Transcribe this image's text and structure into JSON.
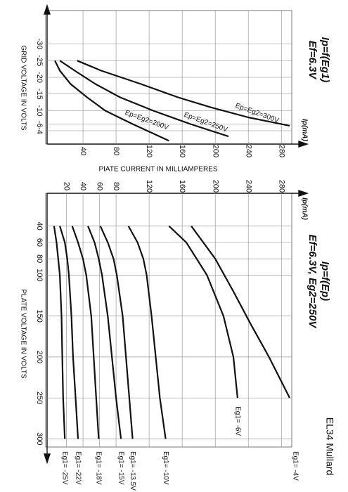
{
  "title": "EL34 Mullard",
  "chart_data": [
    {
      "type": "line",
      "title": "Ip=f(Eg1)",
      "subtitle": "Ef=6.3V",
      "unit_label": "Ip(mA)",
      "xlabel": "GRID VOLTAGE IN VOLTS",
      "ylabel": "PIATE CURRENT IN MILLIAMPERES",
      "xlim": [
        -40,
        0
      ],
      "xticks": [
        -30,
        -25,
        -20,
        -15,
        -10,
        -6,
        -4
      ],
      "ylim": [
        0,
        290
      ],
      "yticks": [
        40,
        80,
        120,
        160,
        200,
        240,
        280
      ],
      "grid": true,
      "series": [
        {
          "name": "Ep=Eg2=300V",
          "color": "#111111",
          "x": [
            -25,
            -22,
            -18,
            -14,
            -11,
            -8,
            -5.5
          ],
          "values": [
            33,
            62,
            110,
            155,
            195,
            240,
            290
          ]
        },
        {
          "name": "Ep=Eg2=250V",
          "color": "#111111",
          "x": [
            -25,
            -22,
            -18,
            -14,
            -10,
            -6,
            -2.3
          ],
          "values": [
            12,
            30,
            55,
            85,
            125,
            170,
            216
          ]
        },
        {
          "name": "Ep=Eg2=200V",
          "color": "#111111",
          "x": [
            -25,
            -22,
            -18,
            -14,
            -10,
            -6,
            -1
          ],
          "values": [
            6,
            12,
            25,
            45,
            67,
            100,
            144
          ]
        }
      ]
    },
    {
      "type": "line",
      "title": "Ip=f(Ep)",
      "subtitle": "Ef=6.3V, Eg2=250V",
      "unit_label": "Ip(mA)",
      "xlabel": "PLATE VOLTAGE IN VOLTS",
      "xlim": [
        0,
        310
      ],
      "xticks": [
        40,
        60,
        80,
        100,
        150,
        200,
        250,
        300
      ],
      "ylim": [
        0,
        290
      ],
      "yticks": [
        20,
        40,
        60,
        80,
        120,
        160,
        200,
        240,
        280
      ],
      "grid": true,
      "series": [
        {
          "name": "Eg1= -4V",
          "color": "#111111",
          "x": [
            40,
            80,
            120,
            160,
            200,
            250
          ],
          "values": [
            171,
            200,
            222,
            243,
            265,
            290
          ]
        },
        {
          "name": "Eg1= -6V",
          "color": "#111111",
          "x": [
            40,
            60,
            100,
            150,
            200,
            250
          ],
          "values": [
            144,
            165,
            190,
            210,
            222,
            227
          ]
        },
        {
          "name": "Eg1= -10V",
          "color": "#111111",
          "x": [
            40,
            60,
            80,
            100,
            150,
            200,
            250,
            300
          ],
          "values": [
            95,
            106,
            113,
            117,
            123,
            128,
            133,
            140
          ]
        },
        {
          "name": "Eg1= -13.5V",
          "color": "#111111",
          "x": [
            40,
            60,
            80,
            100,
            150,
            200,
            250,
            300
          ],
          "values": [
            61,
            70,
            77,
            81,
            88,
            92,
            96,
            100
          ]
        },
        {
          "name": "Eg1= -15V",
          "color": "#111111",
          "x": [
            40,
            60,
            80,
            100,
            150,
            200,
            250,
            300
          ],
          "values": [
            46,
            54,
            59,
            63,
            70,
            75,
            80,
            86
          ]
        },
        {
          "name": "Eg1= -18V",
          "color": "#111111",
          "x": [
            40,
            60,
            80,
            100,
            150,
            200,
            250,
            300
          ],
          "values": [
            27,
            34,
            40,
            44,
            50,
            53,
            56,
            59
          ]
        },
        {
          "name": "Eg1= -22V",
          "color": "#111111",
          "x": [
            40,
            60,
            80,
            100,
            150,
            200,
            250,
            300
          ],
          "values": [
            12,
            18,
            21,
            23,
            26,
            28,
            31,
            34
          ]
        },
        {
          "name": "Eg1= -25V",
          "color": "#111111",
          "x": [
            40,
            60,
            80,
            100,
            150,
            200,
            250,
            300
          ],
          "values": [
            5,
            8,
            10,
            12,
            14,
            15,
            16,
            18
          ]
        }
      ]
    }
  ]
}
